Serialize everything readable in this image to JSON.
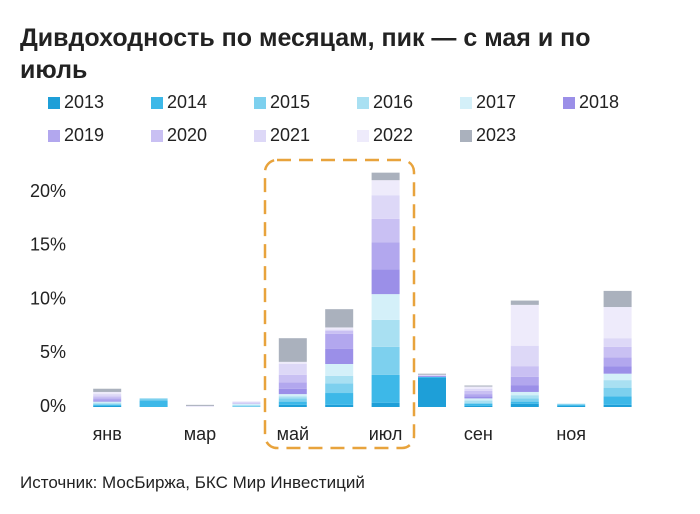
{
  "chart_data": {
    "type": "stacked_bar",
    "title": "Дивдоходность по месяцам, пик — с мая и по июль",
    "source": "Источник: МосБиржа, БКС Мир Инвестиций",
    "categories": [
      "янв",
      null,
      "мар",
      null,
      "май",
      null,
      "июл",
      null,
      "сен",
      null,
      "ноя",
      null
    ],
    "ylim": [
      0,
      22
    ],
    "yticks": [
      {
        "value": 0,
        "label": "0%"
      },
      {
        "value": 5,
        "label": "5%"
      },
      {
        "value": 10,
        "label": "10%"
      },
      {
        "value": 15,
        "label": "15%"
      },
      {
        "value": 20,
        "label": "20%"
      }
    ],
    "legend": "top",
    "series": [
      {
        "name": "2013",
        "color": "#1e9fd8",
        "values": [
          0.1,
          0,
          0,
          0,
          0.2,
          0.2,
          0.4,
          2.7,
          0.1,
          0.3,
          0.1,
          0.2
        ]
      },
      {
        "name": "2014",
        "color": "#3db8e8",
        "values": [
          0.1,
          0.6,
          0,
          0,
          0.3,
          1.1,
          2.6,
          0.1,
          0.2,
          0.2,
          0.1,
          0.8
        ]
      },
      {
        "name": "2015",
        "color": "#7dd0ee",
        "values": [
          0.1,
          0.2,
          0,
          0.1,
          0.3,
          0.9,
          2.6,
          0,
          0.1,
          0.3,
          0.1,
          0.8
        ]
      },
      {
        "name": "2016",
        "color": "#a9e0f2",
        "values": [
          0.1,
          0,
          0,
          0.1,
          0.2,
          0.7,
          2.5,
          0,
          0.2,
          0.3,
          0,
          0.7
        ]
      },
      {
        "name": "2017",
        "color": "#d4f0f9",
        "values": [
          0.1,
          0,
          0,
          0.1,
          0.2,
          1.1,
          2.4,
          0,
          0.2,
          0.3,
          0,
          0.6
        ]
      },
      {
        "name": "2018",
        "color": "#9b8fe8",
        "values": [
          0.1,
          0,
          0,
          0,
          0.5,
          1.4,
          2.3,
          0.1,
          0.2,
          0.6,
          0,
          0.7
        ]
      },
      {
        "name": "2019",
        "color": "#b2a7ee",
        "values": [
          0.2,
          0,
          0,
          0,
          0.6,
          1.4,
          2.5,
          0,
          0.2,
          0.8,
          0,
          0.8
        ]
      },
      {
        "name": "2020",
        "color": "#c9c0f3",
        "values": [
          0.2,
          0,
          0,
          0.1,
          0.7,
          0.3,
          2.2,
          0,
          0.3,
          1.0,
          0,
          1.0
        ]
      },
      {
        "name": "2021",
        "color": "#ddd8f7",
        "values": [
          0.2,
          0,
          0,
          0.1,
          1.0,
          0.1,
          2.2,
          0.1,
          0.2,
          1.9,
          0,
          0.8
        ]
      },
      {
        "name": "2022",
        "color": "#eeebfb",
        "values": [
          0.2,
          0,
          0.1,
          0,
          0.2,
          0.2,
          1.4,
          0,
          0.2,
          3.8,
          0,
          2.9
        ]
      },
      {
        "name": "2023",
        "color": "#aab1bd",
        "values": [
          0.3,
          0,
          0.1,
          0,
          2.2,
          1.7,
          0.7,
          0.1,
          0.1,
          0.4,
          0,
          1.5
        ]
      }
    ]
  }
}
